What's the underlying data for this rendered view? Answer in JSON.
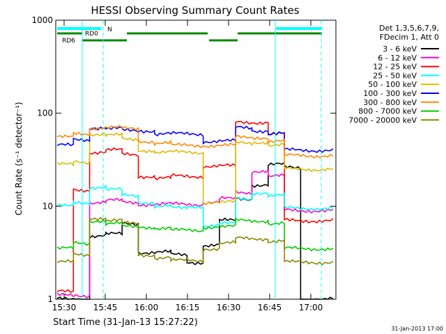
{
  "chart_data": {
    "type": "line",
    "title": "HESSI Observing Summary Count Rates",
    "xlabel": "Start Time (31-Jan-13 15:27:22)",
    "ylabel": "Count Rate (s⁻¹ detector⁻¹)",
    "ylog": true,
    "ylim": [
      1,
      1000
    ],
    "xlim_minutes": [
      15.5,
      24
    ],
    "x_ticks": [
      "15:30",
      "15:45",
      "16:00",
      "16:15",
      "16:30",
      "16:45",
      "17:00"
    ],
    "y_ticks": [
      "1",
      "10",
      "100",
      "1000"
    ],
    "footer_date": "31-Jan-2013 17:00",
    "info_lines": [
      "Det 1,3,5,6,7,9,",
      "FDecim 1, Att 0"
    ],
    "attenuator_labels": [
      "RD0",
      "RD6",
      "N"
    ],
    "series": [
      {
        "name": "3 - 6 keV",
        "color": "#000000",
        "values": [
          1,
          1,
          4.8,
          5,
          6.5,
          3.2,
          3.2,
          3,
          2.5,
          3.8,
          7,
          12,
          17,
          28,
          26,
          1,
          1
        ]
      },
      {
        "name": "6 - 12 keV",
        "color": "#ff00cc",
        "values": [
          1.1,
          1.1,
          11,
          11.5,
          11,
          10.5,
          10.5,
          10.5,
          10.5,
          11,
          12,
          14,
          24,
          21,
          9,
          9,
          9
        ]
      },
      {
        "name": "12 - 25 keV",
        "color": "#ff0000",
        "values": [
          1.2,
          15,
          38,
          40,
          36,
          21,
          20,
          21,
          21,
          27,
          27,
          80,
          80,
          60,
          7,
          7,
          7
        ]
      },
      {
        "name": "25 - 50 keV",
        "color": "#00ffff",
        "values": [
          10,
          11,
          16,
          15,
          13,
          11,
          10,
          9.5,
          10,
          6.2,
          6.5,
          12,
          14,
          13,
          9.5,
          9.5,
          9.5
        ]
      },
      {
        "name": "50 - 100 keV",
        "color": "#ddbb00",
        "values": [
          28,
          30,
          60,
          58,
          52,
          40,
          38,
          38,
          38,
          11,
          11,
          48,
          49,
          45,
          25,
          25,
          25
        ]
      },
      {
        "name": "100 - 300 keV",
        "color": "#0000ff",
        "values": [
          45,
          52,
          70,
          68,
          65,
          65,
          60,
          60,
          60,
          50,
          50,
          70,
          65,
          60,
          40,
          40,
          40
        ]
      },
      {
        "name": "300 - 800 keV",
        "color": "#ff8800",
        "values": [
          55,
          60,
          70,
          70,
          68,
          50,
          48,
          45,
          45,
          45,
          45,
          55,
          55,
          50,
          35,
          35,
          35
        ]
      },
      {
        "name": "800 - 7000 keV",
        "color": "#00cc00",
        "values": [
          3.5,
          4,
          7,
          6.5,
          6,
          6,
          5.8,
          5.5,
          5.5,
          6,
          6,
          7,
          7,
          6.5,
          3.5,
          3.5,
          3.5
        ]
      },
      {
        "name": "7000 - 20000 keV",
        "color": "#888800",
        "values": [
          2.5,
          3,
          7.5,
          7,
          6.5,
          3,
          2.8,
          2.6,
          2.6,
          3.5,
          4,
          4.5,
          4.5,
          4.2,
          2.5,
          2.5,
          2.5
        ]
      }
    ]
  }
}
